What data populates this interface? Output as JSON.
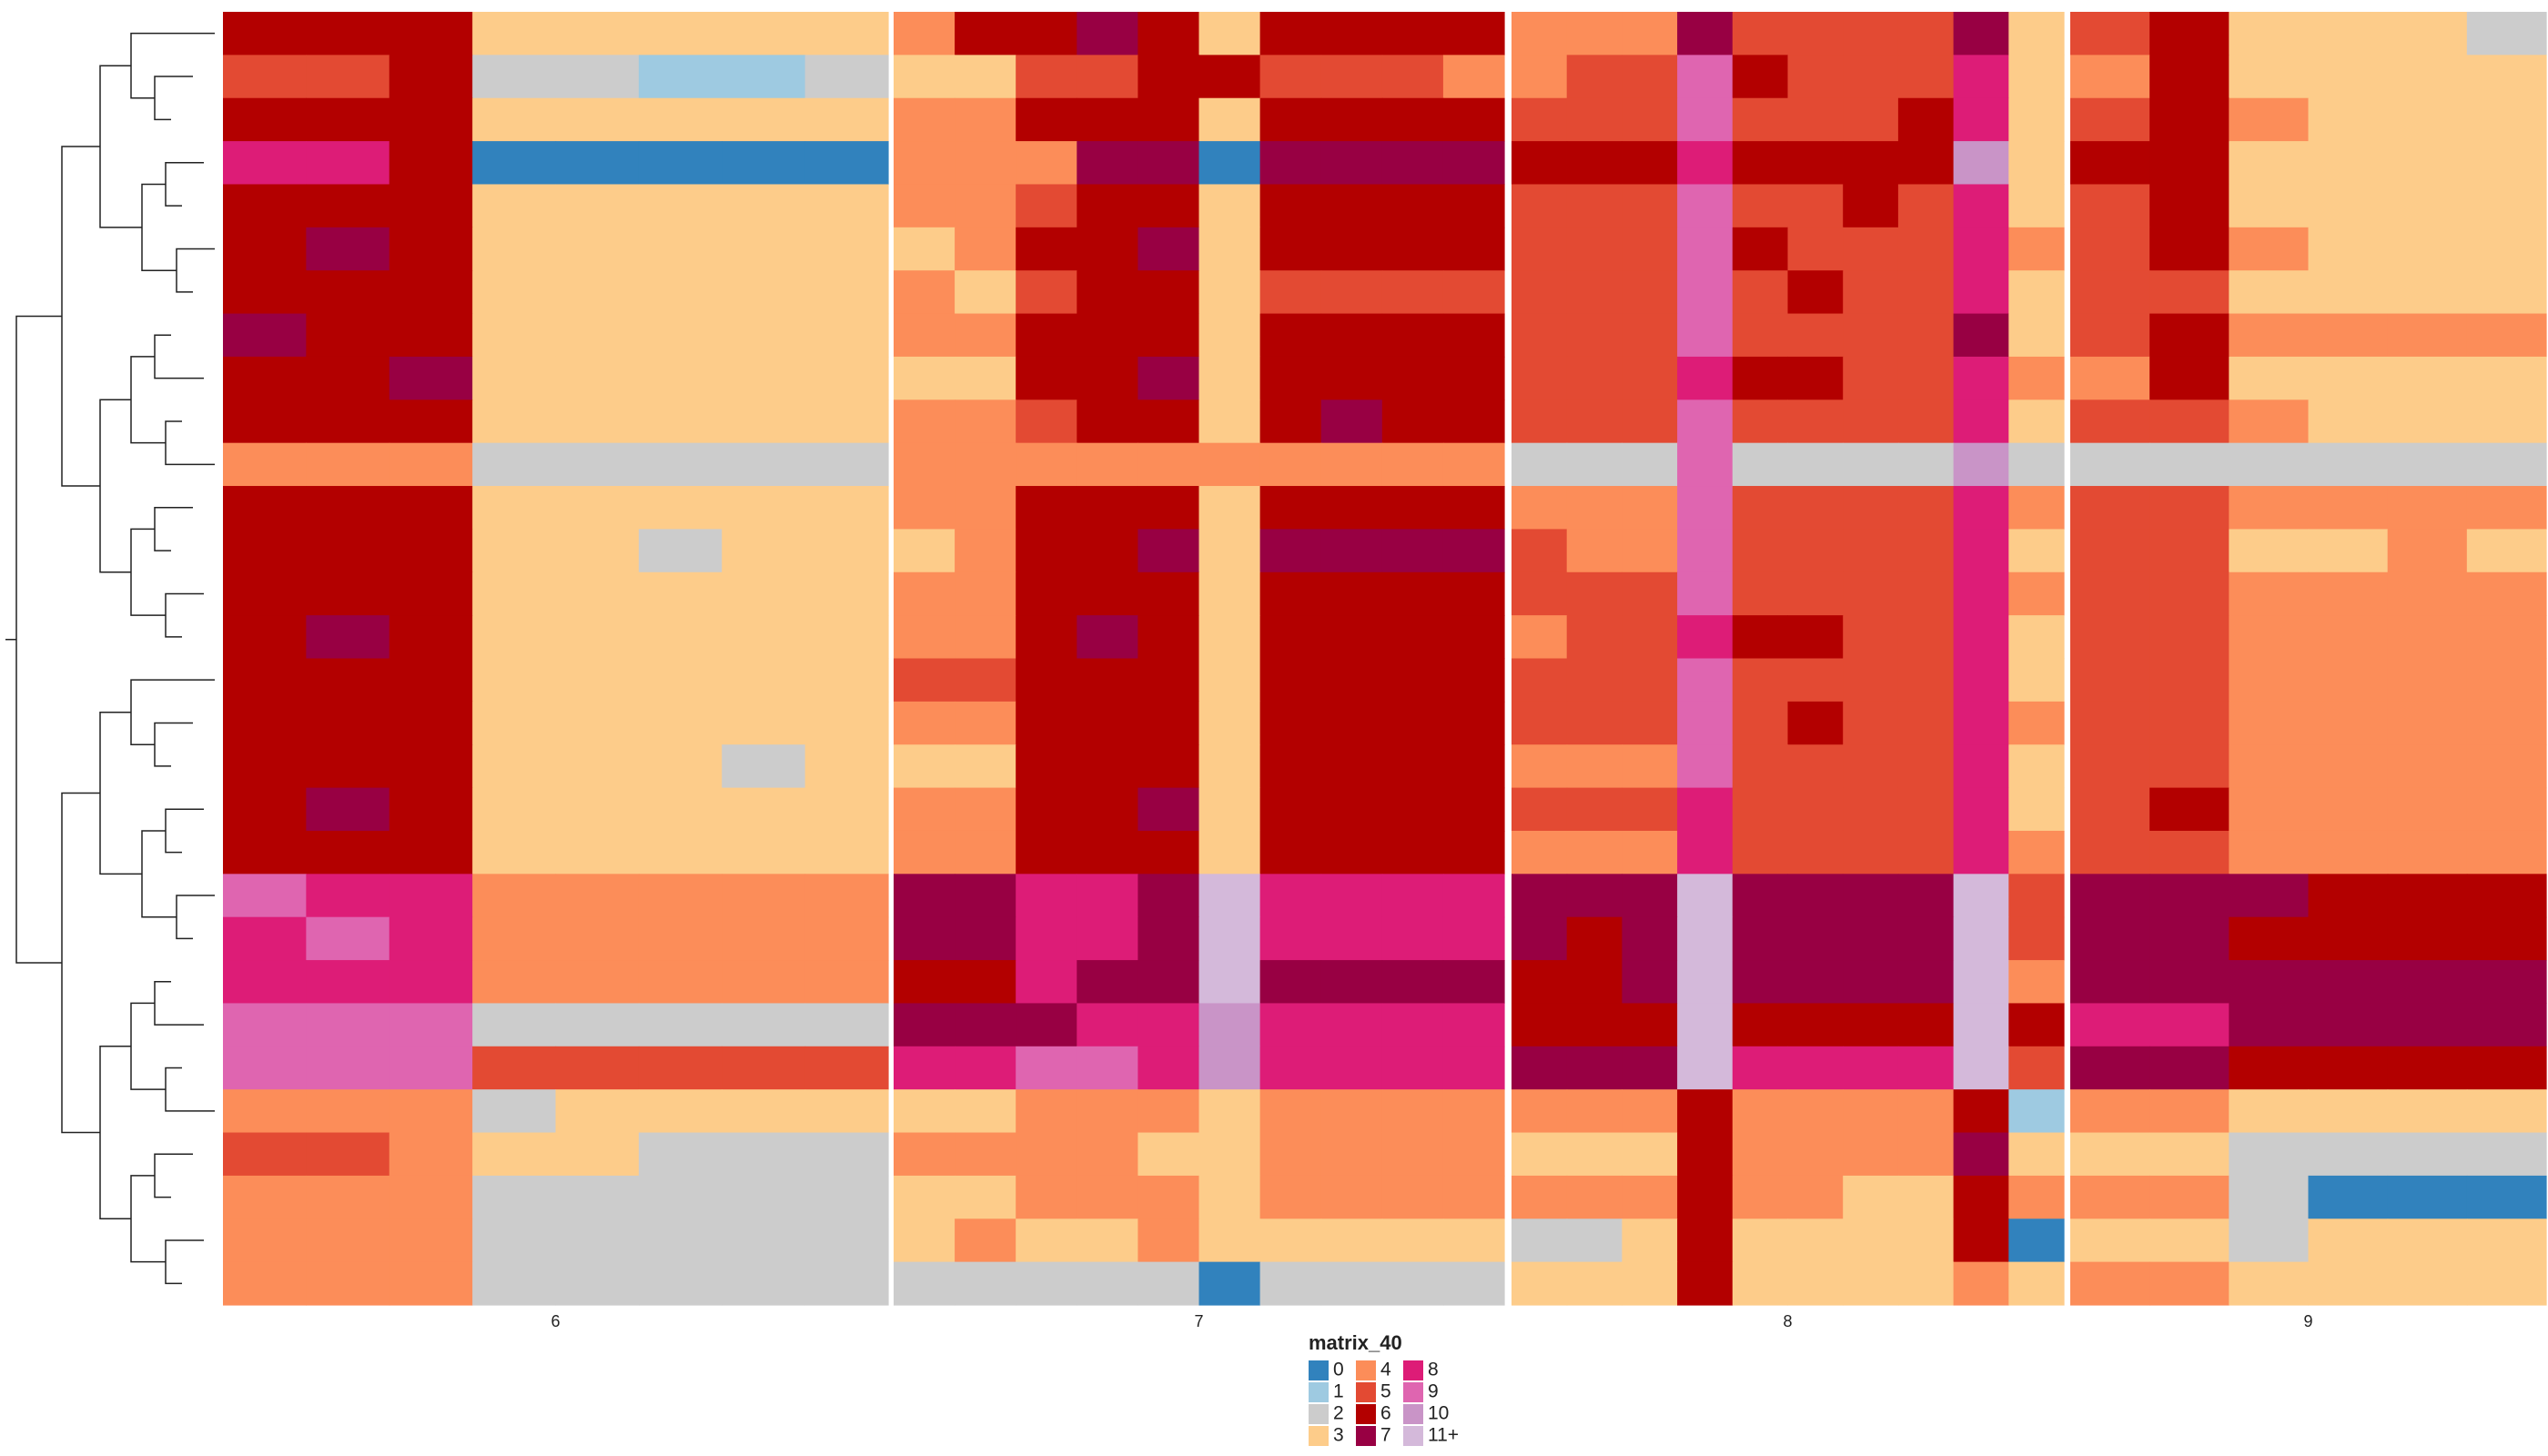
{
  "chart_data": {
    "type": "heatmap",
    "legend_title": "matrix_40",
    "legend": [
      {
        "value": 0,
        "label": "0",
        "color": "#3182bd"
      },
      {
        "value": 1,
        "label": "1",
        "color": "#9ecae1"
      },
      {
        "value": 2,
        "label": "2",
        "color": "#cccccc"
      },
      {
        "value": 3,
        "label": "3",
        "color": "#fdcc8a"
      },
      {
        "value": 4,
        "label": "4",
        "color": "#fc8d59"
      },
      {
        "value": 5,
        "label": "5",
        "color": "#e34a33"
      },
      {
        "value": 6,
        "label": "6",
        "color": "#b30000"
      },
      {
        "value": 7,
        "label": "7",
        "color": "#980043"
      },
      {
        "value": 8,
        "label": "8",
        "color": "#dd1c77"
      },
      {
        "value": 9,
        "label": "9",
        "color": "#df65b0"
      },
      {
        "value": 10,
        "label": "10",
        "color": "#c994c7"
      },
      {
        "value": 11,
        "label": "11+",
        "color": "#d4b9da"
      }
    ],
    "panels": [
      {
        "label": "6",
        "values": [
          [
            6,
            6,
            6,
            3,
            3,
            3,
            3,
            3
          ],
          [
            5,
            5,
            6,
            2,
            2,
            1,
            1,
            2
          ],
          [
            6,
            6,
            6,
            3,
            3,
            3,
            3,
            3
          ],
          [
            8,
            8,
            6,
            0,
            0,
            0,
            0,
            0
          ],
          [
            6,
            6,
            6,
            3,
            3,
            3,
            3,
            3
          ],
          [
            6,
            7,
            6,
            3,
            3,
            3,
            3,
            3
          ],
          [
            6,
            6,
            6,
            3,
            3,
            3,
            3,
            3
          ],
          [
            7,
            6,
            6,
            3,
            3,
            3,
            3,
            3
          ],
          [
            6,
            6,
            7,
            3,
            3,
            3,
            3,
            3
          ],
          [
            6,
            6,
            6,
            3,
            3,
            3,
            3,
            3
          ],
          [
            4,
            4,
            4,
            2,
            2,
            2,
            2,
            2
          ],
          [
            6,
            6,
            6,
            3,
            3,
            3,
            3,
            3
          ],
          [
            6,
            6,
            6,
            3,
            3,
            2,
            3,
            3
          ],
          [
            6,
            6,
            6,
            3,
            3,
            3,
            3,
            3
          ],
          [
            6,
            7,
            6,
            3,
            3,
            3,
            3,
            3
          ],
          [
            6,
            6,
            6,
            3,
            3,
            3,
            3,
            3
          ],
          [
            6,
            6,
            6,
            3,
            3,
            3,
            3,
            3
          ],
          [
            6,
            6,
            6,
            3,
            3,
            3,
            2,
            3
          ],
          [
            6,
            7,
            6,
            3,
            3,
            3,
            3,
            3
          ],
          [
            6,
            6,
            6,
            3,
            3,
            3,
            3,
            3
          ],
          [
            9,
            8,
            8,
            4,
            4,
            4,
            4,
            4
          ],
          [
            8,
            9,
            8,
            4,
            4,
            4,
            4,
            4
          ],
          [
            8,
            8,
            8,
            4,
            4,
            4,
            4,
            4
          ],
          [
            9,
            9,
            9,
            2,
            2,
            2,
            2,
            2
          ],
          [
            9,
            9,
            9,
            5,
            5,
            5,
            5,
            5
          ],
          [
            4,
            4,
            4,
            2,
            3,
            3,
            3,
            3
          ],
          [
            5,
            5,
            4,
            3,
            3,
            2,
            2,
            2
          ],
          [
            4,
            4,
            4,
            2,
            2,
            2,
            2,
            2
          ],
          [
            4,
            4,
            4,
            2,
            2,
            2,
            2,
            2
          ],
          [
            4,
            4,
            4,
            2,
            2,
            2,
            2,
            2
          ]
        ]
      },
      {
        "label": "7",
        "values": [
          [
            4,
            6,
            6,
            7,
            6,
            3,
            6,
            6,
            6,
            6
          ],
          [
            3,
            3,
            5,
            5,
            6,
            6,
            5,
            5,
            5,
            4
          ],
          [
            4,
            4,
            6,
            6,
            6,
            3,
            6,
            6,
            6,
            6
          ],
          [
            4,
            4,
            4,
            7,
            7,
            0,
            7,
            7,
            7,
            7
          ],
          [
            4,
            4,
            5,
            6,
            6,
            3,
            6,
            6,
            6,
            6
          ],
          [
            3,
            4,
            6,
            6,
            7,
            3,
            6,
            6,
            6,
            6
          ],
          [
            4,
            3,
            5,
            6,
            6,
            3,
            5,
            5,
            5,
            5
          ],
          [
            4,
            4,
            6,
            6,
            6,
            3,
            6,
            6,
            6,
            6
          ],
          [
            3,
            3,
            6,
            6,
            7,
            3,
            6,
            6,
            6,
            6
          ],
          [
            4,
            4,
            5,
            6,
            6,
            3,
            6,
            7,
            6,
            6
          ],
          [
            4,
            4,
            4,
            4,
            4,
            4,
            4,
            4,
            4,
            4
          ],
          [
            4,
            4,
            6,
            6,
            6,
            3,
            6,
            6,
            6,
            6
          ],
          [
            3,
            4,
            6,
            6,
            7,
            3,
            7,
            7,
            7,
            7
          ],
          [
            4,
            4,
            6,
            6,
            6,
            3,
            6,
            6,
            6,
            6
          ],
          [
            4,
            4,
            6,
            7,
            6,
            3,
            6,
            6,
            6,
            6
          ],
          [
            5,
            5,
            6,
            6,
            6,
            3,
            6,
            6,
            6,
            6
          ],
          [
            4,
            4,
            6,
            6,
            6,
            3,
            6,
            6,
            6,
            6
          ],
          [
            3,
            3,
            6,
            6,
            6,
            3,
            6,
            6,
            6,
            6
          ],
          [
            4,
            4,
            6,
            6,
            7,
            3,
            6,
            6,
            6,
            6
          ],
          [
            4,
            4,
            6,
            6,
            6,
            3,
            6,
            6,
            6,
            6
          ],
          [
            7,
            7,
            8,
            8,
            7,
            11,
            8,
            8,
            8,
            8
          ],
          [
            7,
            7,
            8,
            8,
            7,
            11,
            8,
            8,
            8,
            8
          ],
          [
            6,
            6,
            8,
            7,
            7,
            11,
            7,
            7,
            7,
            7
          ],
          [
            7,
            7,
            7,
            8,
            8,
            10,
            8,
            8,
            8,
            8
          ],
          [
            8,
            8,
            9,
            9,
            8,
            10,
            8,
            8,
            8,
            8
          ],
          [
            3,
            3,
            4,
            4,
            4,
            3,
            4,
            4,
            4,
            4
          ],
          [
            4,
            4,
            4,
            4,
            3,
            3,
            4,
            4,
            4,
            4
          ],
          [
            3,
            3,
            4,
            4,
            4,
            3,
            4,
            4,
            4,
            4
          ],
          [
            3,
            4,
            3,
            3,
            4,
            3,
            3,
            3,
            3,
            3
          ],
          [
            2,
            2,
            2,
            2,
            2,
            0,
            2,
            2,
            2,
            2
          ]
        ]
      },
      {
        "label": "8",
        "values": [
          [
            4,
            4,
            4,
            7,
            5,
            5,
            5,
            5,
            7,
            3
          ],
          [
            4,
            5,
            5,
            9,
            6,
            5,
            5,
            5,
            8,
            3
          ],
          [
            5,
            5,
            5,
            9,
            5,
            5,
            5,
            6,
            8,
            3
          ],
          [
            6,
            6,
            6,
            8,
            6,
            6,
            6,
            6,
            10,
            3
          ],
          [
            5,
            5,
            5,
            9,
            5,
            5,
            6,
            5,
            8,
            3
          ],
          [
            5,
            5,
            5,
            9,
            6,
            5,
            5,
            5,
            8,
            4
          ],
          [
            5,
            5,
            5,
            9,
            5,
            6,
            5,
            5,
            8,
            3
          ],
          [
            5,
            5,
            5,
            9,
            5,
            5,
            5,
            5,
            7,
            3
          ],
          [
            5,
            5,
            5,
            8,
            6,
            6,
            5,
            5,
            8,
            4
          ],
          [
            5,
            5,
            5,
            9,
            5,
            5,
            5,
            5,
            8,
            3
          ],
          [
            2,
            2,
            2,
            9,
            2,
            2,
            2,
            2,
            10,
            2
          ],
          [
            4,
            4,
            4,
            9,
            5,
            5,
            5,
            5,
            8,
            4
          ],
          [
            5,
            4,
            4,
            9,
            5,
            5,
            5,
            5,
            8,
            3
          ],
          [
            5,
            5,
            5,
            9,
            5,
            5,
            5,
            5,
            8,
            4
          ],
          [
            4,
            5,
            5,
            8,
            6,
            6,
            5,
            5,
            8,
            3
          ],
          [
            5,
            5,
            5,
            9,
            5,
            5,
            5,
            5,
            8,
            3
          ],
          [
            5,
            5,
            5,
            9,
            5,
            6,
            5,
            5,
            8,
            4
          ],
          [
            4,
            4,
            4,
            9,
            5,
            5,
            5,
            5,
            8,
            3
          ],
          [
            5,
            5,
            5,
            8,
            5,
            5,
            5,
            5,
            8,
            3
          ],
          [
            4,
            4,
            4,
            8,
            5,
            5,
            5,
            5,
            8,
            4
          ],
          [
            7,
            7,
            7,
            11,
            7,
            7,
            7,
            7,
            11,
            5
          ],
          [
            7,
            6,
            7,
            11,
            7,
            7,
            7,
            7,
            11,
            5
          ],
          [
            6,
            6,
            7,
            11,
            7,
            7,
            7,
            7,
            11,
            4
          ],
          [
            6,
            6,
            6,
            11,
            6,
            6,
            6,
            6,
            11,
            6
          ],
          [
            7,
            7,
            7,
            11,
            8,
            8,
            8,
            8,
            11,
            5
          ],
          [
            4,
            4,
            4,
            6,
            4,
            4,
            4,
            4,
            6,
            1
          ],
          [
            3,
            3,
            3,
            6,
            4,
            4,
            4,
            4,
            7,
            3
          ],
          [
            4,
            4,
            4,
            6,
            4,
            4,
            3,
            3,
            6,
            4
          ],
          [
            2,
            2,
            3,
            6,
            3,
            3,
            3,
            3,
            6,
            0
          ],
          [
            3,
            3,
            3,
            6,
            3,
            3,
            3,
            3,
            4,
            3
          ]
        ]
      },
      {
        "label": "9",
        "values": [
          [
            5,
            6,
            3,
            3,
            3,
            2
          ],
          [
            4,
            6,
            3,
            3,
            3,
            3
          ],
          [
            5,
            6,
            4,
            3,
            3,
            3
          ],
          [
            6,
            6,
            3,
            3,
            3,
            3
          ],
          [
            5,
            6,
            3,
            3,
            3,
            3
          ],
          [
            5,
            6,
            4,
            3,
            3,
            3
          ],
          [
            5,
            5,
            3,
            3,
            3,
            3
          ],
          [
            5,
            6,
            4,
            4,
            4,
            4
          ],
          [
            4,
            6,
            3,
            3,
            3,
            3
          ],
          [
            5,
            5,
            4,
            3,
            3,
            3
          ],
          [
            2,
            2,
            2,
            2,
            2,
            2
          ],
          [
            5,
            5,
            4,
            4,
            4,
            4
          ],
          [
            5,
            5,
            3,
            3,
            4,
            3
          ],
          [
            5,
            5,
            4,
            4,
            4,
            4
          ],
          [
            5,
            5,
            4,
            4,
            4,
            4
          ],
          [
            5,
            5,
            4,
            4,
            4,
            4
          ],
          [
            5,
            5,
            4,
            4,
            4,
            4
          ],
          [
            5,
            5,
            4,
            4,
            4,
            4
          ],
          [
            5,
            6,
            4,
            4,
            4,
            4
          ],
          [
            5,
            5,
            4,
            4,
            4,
            4
          ],
          [
            7,
            7,
            7,
            6,
            6,
            6
          ],
          [
            7,
            7,
            6,
            6,
            6,
            6
          ],
          [
            7,
            7,
            7,
            7,
            7,
            7
          ],
          [
            8,
            8,
            7,
            7,
            7,
            7
          ],
          [
            7,
            7,
            6,
            6,
            6,
            6
          ],
          [
            4,
            4,
            3,
            3,
            3,
            3
          ],
          [
            3,
            3,
            2,
            2,
            2,
            2
          ],
          [
            4,
            4,
            2,
            0,
            0,
            0
          ],
          [
            3,
            3,
            2,
            3,
            3,
            3
          ],
          [
            4,
            4,
            3,
            3,
            3,
            3
          ]
        ]
      }
    ]
  }
}
